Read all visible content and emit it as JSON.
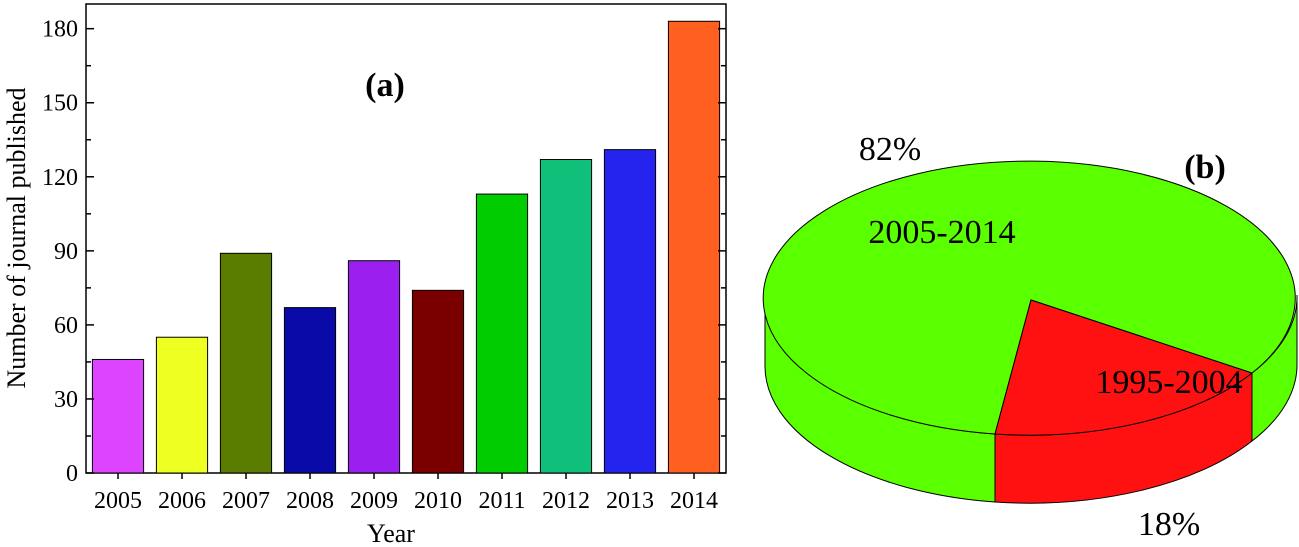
{
  "chart_data": [
    {
      "type": "bar",
      "panel_label": "(a)",
      "xlabel": "Year",
      "ylabel": "Number of journal published",
      "ylim": [
        0,
        190
      ],
      "yticks": [
        0,
        30,
        60,
        90,
        120,
        150,
        180
      ],
      "grid": false,
      "categories": [
        "2005",
        "2006",
        "2007",
        "2008",
        "2009",
        "2010",
        "2011",
        "2012",
        "2013",
        "2014"
      ],
      "values": [
        46,
        55,
        89,
        67,
        86,
        74,
        113,
        127,
        131,
        183
      ],
      "colors": [
        "#dd44ff",
        "#eeff22",
        "#5a7d00",
        "#0a0aa8",
        "#9b20f0",
        "#7a0000",
        "#00cc00",
        "#10c07a",
        "#2424ee",
        "#ff5f1f"
      ]
    },
    {
      "type": "pie",
      "style": "3d",
      "panel_label": "(b)",
      "slices": [
        {
          "label": "2005-2014",
          "value": 82,
          "pct_label": "82%",
          "color": "#5aff00"
        },
        {
          "label": "1995-2004",
          "value": 18,
          "pct_label": "18%",
          "color": "#ff1111"
        }
      ]
    }
  ]
}
